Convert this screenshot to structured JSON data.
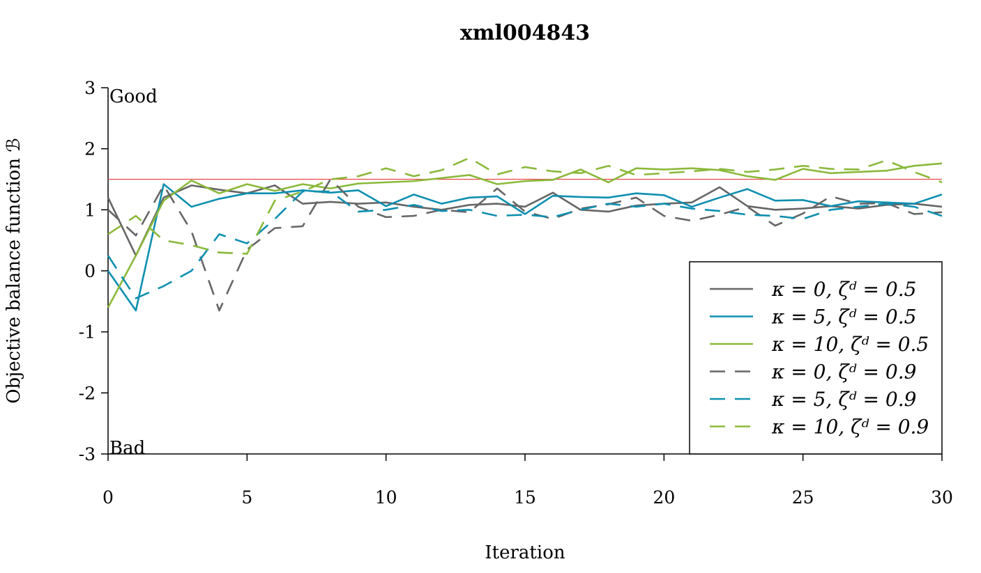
{
  "chart_data": {
    "type": "line",
    "title": "xml004843",
    "xlabel": "Iteration",
    "ylabel": "Objective balance function ℬ",
    "xlim": [
      0,
      30
    ],
    "ylim": [
      -3,
      3
    ],
    "xticks": [
      "0",
      "5",
      "10",
      "15",
      "20",
      "25",
      "30"
    ],
    "yticks": [
      "-3",
      "-2",
      "-1",
      "0",
      "1",
      "2",
      "3"
    ],
    "annotations": {
      "good": "Good",
      "bad": "Bad"
    },
    "reference_line": {
      "y": 1.5,
      "color": "#e8474a"
    },
    "legend_position": "bottom-right",
    "grid": false,
    "x": [
      0,
      1,
      2,
      3,
      4,
      5,
      6,
      7,
      8,
      9,
      10,
      11,
      12,
      13,
      14,
      15,
      16,
      17,
      18,
      19,
      20,
      21,
      22,
      23,
      24,
      25,
      26,
      27,
      28,
      29,
      30
    ],
    "series": [
      {
        "name": "κ = 0, ζᵈ = 0.5",
        "color": "#666666",
        "dash": "solid",
        "values": [
          1.2,
          0.25,
          1.2,
          1.4,
          1.33,
          1.27,
          1.4,
          1.1,
          1.13,
          1.1,
          1.12,
          1.05,
          1.0,
          1.08,
          1.1,
          1.05,
          1.28,
          1.0,
          0.97,
          1.07,
          1.1,
          1.12,
          1.37,
          1.06,
          1.0,
          1.02,
          1.06,
          1.02,
          1.08,
          1.1,
          1.05
        ]
      },
      {
        "name": "κ = 5, ζᵈ = 0.5",
        "color": "#0e8fb0",
        "dash": "solid",
        "values": [
          0.0,
          -0.65,
          1.42,
          1.05,
          1.18,
          1.27,
          1.27,
          1.32,
          1.28,
          1.32,
          1.06,
          1.25,
          1.1,
          1.2,
          1.22,
          0.93,
          1.23,
          1.21,
          1.2,
          1.27,
          1.24,
          1.05,
          1.2,
          1.34,
          1.15,
          1.16,
          1.06,
          1.14,
          1.12,
          1.1,
          1.25
        ]
      },
      {
        "name": "κ = 10, ζᵈ = 0.5",
        "color": "#8ab93a",
        "dash": "solid",
        "values": [
          -0.6,
          0.25,
          1.15,
          1.48,
          1.27,
          1.42,
          1.31,
          1.42,
          1.35,
          1.43,
          1.45,
          1.47,
          1.52,
          1.57,
          1.42,
          1.47,
          1.49,
          1.66,
          1.45,
          1.68,
          1.66,
          1.68,
          1.65,
          1.55,
          1.49,
          1.67,
          1.6,
          1.62,
          1.64,
          1.72,
          1.76
        ]
      },
      {
        "name": "κ = 0, ζᵈ = 0.9",
        "color": "#666666",
        "dash": "dashed",
        "values": [
          1.0,
          0.58,
          1.4,
          0.65,
          -0.65,
          0.35,
          0.7,
          0.73,
          1.5,
          1.05,
          0.88,
          0.9,
          1.0,
          0.96,
          1.35,
          0.97,
          0.85,
          1.02,
          1.09,
          1.2,
          0.9,
          0.82,
          0.92,
          1.05,
          0.74,
          0.94,
          1.22,
          1.1,
          1.11,
          0.93,
          0.96
        ]
      },
      {
        "name": "κ = 5, ζᵈ = 0.9",
        "color": "#0e8fb0",
        "dash": "dashed",
        "values": [
          0.25,
          -0.45,
          -0.25,
          0.0,
          0.6,
          0.45,
          0.85,
          1.3,
          1.3,
          0.97,
          1.0,
          1.08,
          0.98,
          1.0,
          0.9,
          0.92,
          0.88,
          1.0,
          1.1,
          1.05,
          1.1,
          1.02,
          0.98,
          0.92,
          0.9,
          0.85,
          1.0,
          1.05,
          1.1,
          1.05,
          0.9
        ]
      },
      {
        "name": "κ = 10, ζᵈ = 0.9",
        "color": "#8ab93a",
        "dash": "dashed",
        "values": [
          0.6,
          0.9,
          0.5,
          0.42,
          0.3,
          0.28,
          1.15,
          1.3,
          1.5,
          1.55,
          1.68,
          1.55,
          1.65,
          1.85,
          1.58,
          1.7,
          1.63,
          1.6,
          1.72,
          1.57,
          1.6,
          1.63,
          1.67,
          1.62,
          1.66,
          1.72,
          1.67,
          1.66,
          1.81,
          1.62,
          1.45
        ]
      }
    ]
  }
}
